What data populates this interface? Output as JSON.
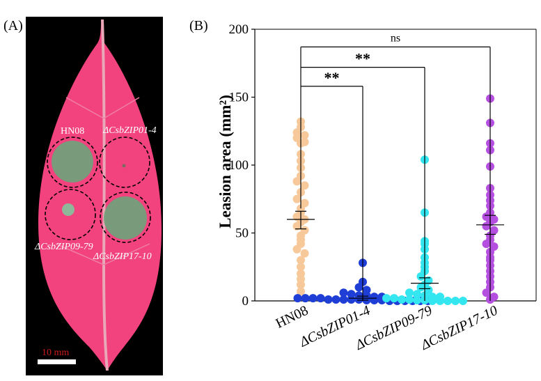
{
  "panel_a": {
    "letter": "(A)",
    "spots": [
      {
        "label": "HN08",
        "italic": false
      },
      {
        "label": "ΔCsbZIP01-4",
        "italic": true
      },
      {
        "label": "ΔCsbZIP09-79",
        "italic": true
      },
      {
        "label": "ΔCsbZIP17-10",
        "italic": true
      }
    ],
    "scale_bar": "10 mm",
    "colors": {
      "background": "#000000",
      "leaf": "#f2437f",
      "lesion": "#6fa37b"
    }
  },
  "panel_b": {
    "letter": "(B)"
  },
  "chart_data": {
    "type": "scatter",
    "ylabel": "Leasion area (mm²)",
    "ylim": [
      0,
      200
    ],
    "yticks": [
      0,
      50,
      100,
      150,
      200
    ],
    "categories": [
      "HN08",
      "ΔCsbZIP01-4",
      "ΔCsbZIP09-79",
      "ΔCsbZIP17-10"
    ],
    "series": [
      {
        "color": "#f7c99a",
        "mean": 60,
        "sem_low": 53,
        "sem_high": 66,
        "points": [
          132,
          128,
          124,
          122,
          120,
          117,
          116,
          108,
          103,
          98,
          92,
          88,
          85,
          80,
          75,
          72,
          68,
          65,
          62,
          60,
          58,
          55,
          52,
          48,
          45,
          42,
          38,
          35,
          30,
          25,
          20,
          16,
          12,
          7
        ]
      },
      {
        "color": "#1f3ed6",
        "mean": 2,
        "sem_low": 0.5,
        "sem_high": 3.5,
        "points": [
          28,
          14,
          10,
          8,
          6,
          5,
          4,
          4,
          3,
          3,
          2,
          2,
          2,
          2,
          1,
          1,
          1,
          1,
          1,
          0.5,
          0.5,
          0.5,
          0,
          0,
          0,
          0,
          0,
          0
        ]
      },
      {
        "color": "#33e6f0",
        "mean": 13,
        "sem_low": 9,
        "sem_high": 17,
        "points": [
          104,
          65,
          44,
          42,
          38,
          32,
          28,
          25,
          22,
          18,
          15,
          12,
          10,
          8,
          6,
          5,
          4,
          3,
          3,
          2,
          2,
          1,
          1,
          0.5,
          0.5,
          0,
          0,
          0,
          0,
          0
        ]
      },
      {
        "color": "#b44fe0",
        "mean": 56,
        "sem_low": 49,
        "sem_high": 63,
        "points": [
          149,
          131,
          116,
          111,
          99,
          83,
          78,
          74,
          70,
          65,
          62,
          60,
          58,
          55,
          52,
          48,
          45,
          42,
          40,
          36,
          32,
          30,
          26,
          22,
          18,
          14,
          10,
          6,
          3,
          1
        ]
      }
    ],
    "comparisons": [
      {
        "from": 0,
        "to": 1,
        "label": "**",
        "y": 158
      },
      {
        "from": 0,
        "to": 2,
        "label": "**",
        "y": 172
      },
      {
        "from": 0,
        "to": 3,
        "label": "ns",
        "y": 187
      }
    ]
  }
}
